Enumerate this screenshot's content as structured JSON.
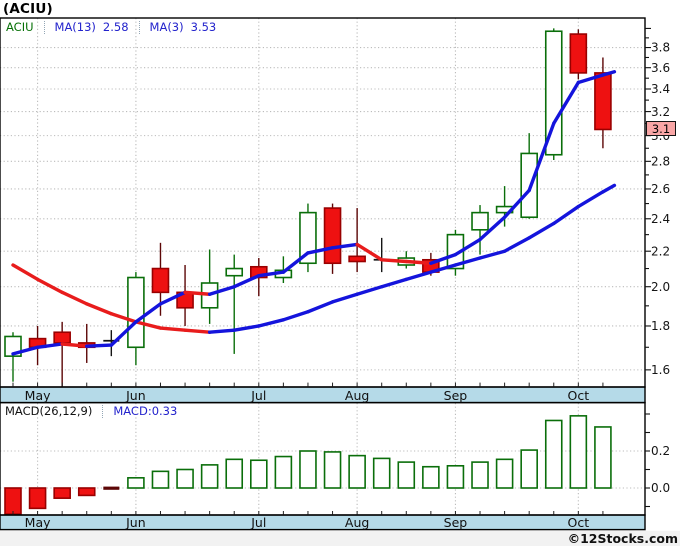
{
  "header": {
    "title": "(ACIU)"
  },
  "legend": {
    "symbol": "ACIU",
    "ma13_label": "MA(13)",
    "ma13_value": "2.58",
    "ma3_label": "MA(3)",
    "ma3_value": "3.53"
  },
  "macd_legend": {
    "label": "MACD(26,12,9)",
    "value": "MACD:0.33"
  },
  "price_marker": {
    "value": "3.1"
  },
  "copyright": "©12Stocks.com",
  "colors": {
    "up_green": "#0a6e0a",
    "down_red_fill": "#ee1111",
    "down_red_border": "#990000",
    "down_red_wick": "#5c0606",
    "doji_black": "#141414",
    "ma_up_blue": "#1414dc",
    "ma_down_red": "#e81c1c",
    "grid_gray": "#bcbcbc",
    "strip_blue": "#b5dae8",
    "marker_pink": "#f9a6a6",
    "legend_symbol_green": "#067006",
    "legend_value_blue": "#2323cc",
    "axis_text": "#151515"
  },
  "chart_data": {
    "type": "candlestick_with_macd",
    "symbol": "ACIU",
    "frequency": "weekly",
    "months": [
      "May",
      "Jun",
      "Jul",
      "Aug",
      "Sep",
      "Oct"
    ],
    "month_start_index": [
      1,
      5,
      10,
      14,
      18,
      23
    ],
    "price_axis": {
      "scale": "log",
      "min": 1.5,
      "max": 4.05,
      "tick_step": 0.2,
      "minor_step": 0.1,
      "labels": [
        "3.8",
        "3.6",
        "3.4",
        "3.2",
        "3.0",
        "2.8",
        "2.6",
        "2.4",
        "2.2",
        "2.0",
        "1.8",
        "1.6"
      ],
      "last_price": 3.1,
      "grid": true,
      "legend_position": "top-left"
    },
    "candles_ohlc": [
      [
        1.66,
        1.77,
        1.55,
        1.75
      ],
      [
        1.74,
        1.8,
        1.62,
        1.7
      ],
      [
        1.77,
        1.82,
        1.53,
        1.72
      ],
      [
        1.72,
        1.81,
        1.63,
        1.7
      ],
      [
        1.73,
        1.78,
        1.66,
        1.73
      ],
      [
        1.7,
        2.08,
        1.62,
        2.05
      ],
      [
        2.1,
        2.25,
        1.85,
        1.97
      ],
      [
        1.97,
        2.12,
        1.8,
        1.89
      ],
      [
        1.89,
        2.21,
        1.81,
        2.02
      ],
      [
        2.06,
        2.18,
        1.67,
        2.1
      ],
      [
        2.11,
        2.16,
        1.95,
        2.05
      ],
      [
        2.05,
        2.17,
        2.02,
        2.09
      ],
      [
        2.13,
        2.5,
        2.08,
        2.44
      ],
      [
        2.47,
        2.5,
        2.07,
        2.13
      ],
      [
        2.17,
        2.47,
        2.08,
        2.14
      ],
      [
        2.15,
        2.28,
        2.08,
        2.15
      ],
      [
        2.12,
        2.2,
        2.1,
        2.16
      ],
      [
        2.15,
        2.19,
        2.06,
        2.08
      ],
      [
        2.1,
        2.33,
        2.06,
        2.3
      ],
      [
        2.33,
        2.49,
        2.18,
        2.44
      ],
      [
        2.44,
        2.62,
        2.35,
        2.48
      ],
      [
        2.41,
        3.02,
        2.4,
        2.86
      ],
      [
        2.85,
        4.0,
        2.81,
        3.97
      ],
      [
        3.94,
        3.99,
        3.49,
        3.55
      ],
      [
        3.55,
        3.7,
        2.9,
        3.05
      ]
    ],
    "ma3_values": [
      1.67,
      1.7,
      1.715,
      1.705,
      1.71,
      1.82,
      1.91,
      1.97,
      1.96,
      2.0,
      2.06,
      2.08,
      2.19,
      2.22,
      2.24,
      2.15,
      2.14,
      2.13,
      2.18,
      2.27,
      2.41,
      2.59,
      3.1,
      3.46,
      3.53
    ],
    "ma13_values": [
      2.12,
      2.04,
      1.97,
      1.91,
      1.86,
      1.82,
      1.79,
      1.78,
      1.77,
      1.78,
      1.8,
      1.83,
      1.87,
      1.92,
      1.96,
      2.0,
      2.04,
      2.08,
      2.12,
      2.16,
      2.2,
      2.28,
      2.37,
      2.48,
      2.58
    ],
    "macd": {
      "params": "26,12,9",
      "current": 0.33,
      "axis_labels": [
        "0.2",
        "0.0"
      ],
      "values": [
        -0.15,
        -0.11,
        -0.055,
        -0.04,
        -0.008,
        0.055,
        0.09,
        0.1,
        0.125,
        0.155,
        0.15,
        0.17,
        0.2,
        0.195,
        0.175,
        0.16,
        0.14,
        0.115,
        0.12,
        0.14,
        0.155,
        0.205,
        0.365,
        0.39,
        0.33
      ]
    }
  }
}
